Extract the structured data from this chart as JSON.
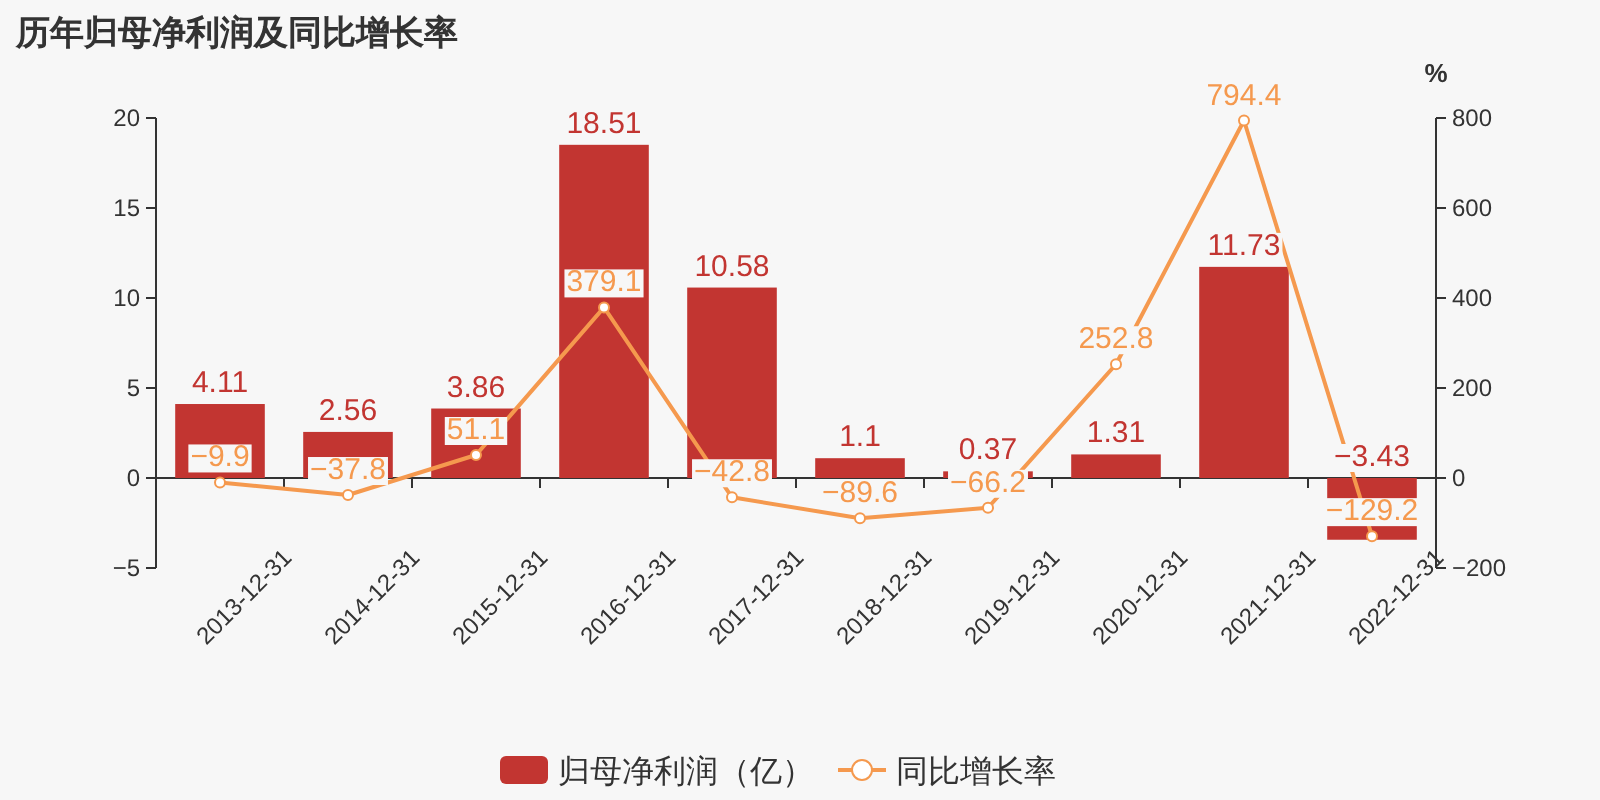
{
  "chart_data": {
    "type": "bar",
    "title": "历年归母净利润及同比增长率",
    "categories": [
      "2013-12-31",
      "2014-12-31",
      "2015-12-31",
      "2016-12-31",
      "2017-12-31",
      "2018-12-31",
      "2019-12-31",
      "2020-12-31",
      "2021-12-31",
      "2022-12-31"
    ],
    "series": [
      {
        "name": "归母净利润（亿）",
        "color": "#c23531",
        "values": [
          4.11,
          2.56,
          3.86,
          18.51,
          10.58,
          1.1,
          0.37,
          1.31,
          11.73,
          -3.43
        ]
      },
      {
        "name": "同比增长率",
        "type": "line",
        "axis": "y2",
        "color": "#f5994e",
        "marker": "circle",
        "values": [
          -9.9,
          -37.8,
          51.1,
          379.1,
          -42.8,
          -89.6,
          -66.2,
          252.8,
          794.4,
          -129.2
        ]
      }
    ],
    "ylim": [
      -5,
      20
    ],
    "yticks": [
      {
        "value": -5,
        "label": "−5"
      },
      0,
      5,
      10,
      15,
      20
    ],
    "y2lim": [
      -200,
      800
    ],
    "y2ticks": [
      {
        "value": -200,
        "label": "−200"
      },
      0,
      200,
      400,
      600,
      800
    ],
    "y2label": "%",
    "data_labels": true,
    "legend": "bottom"
  }
}
